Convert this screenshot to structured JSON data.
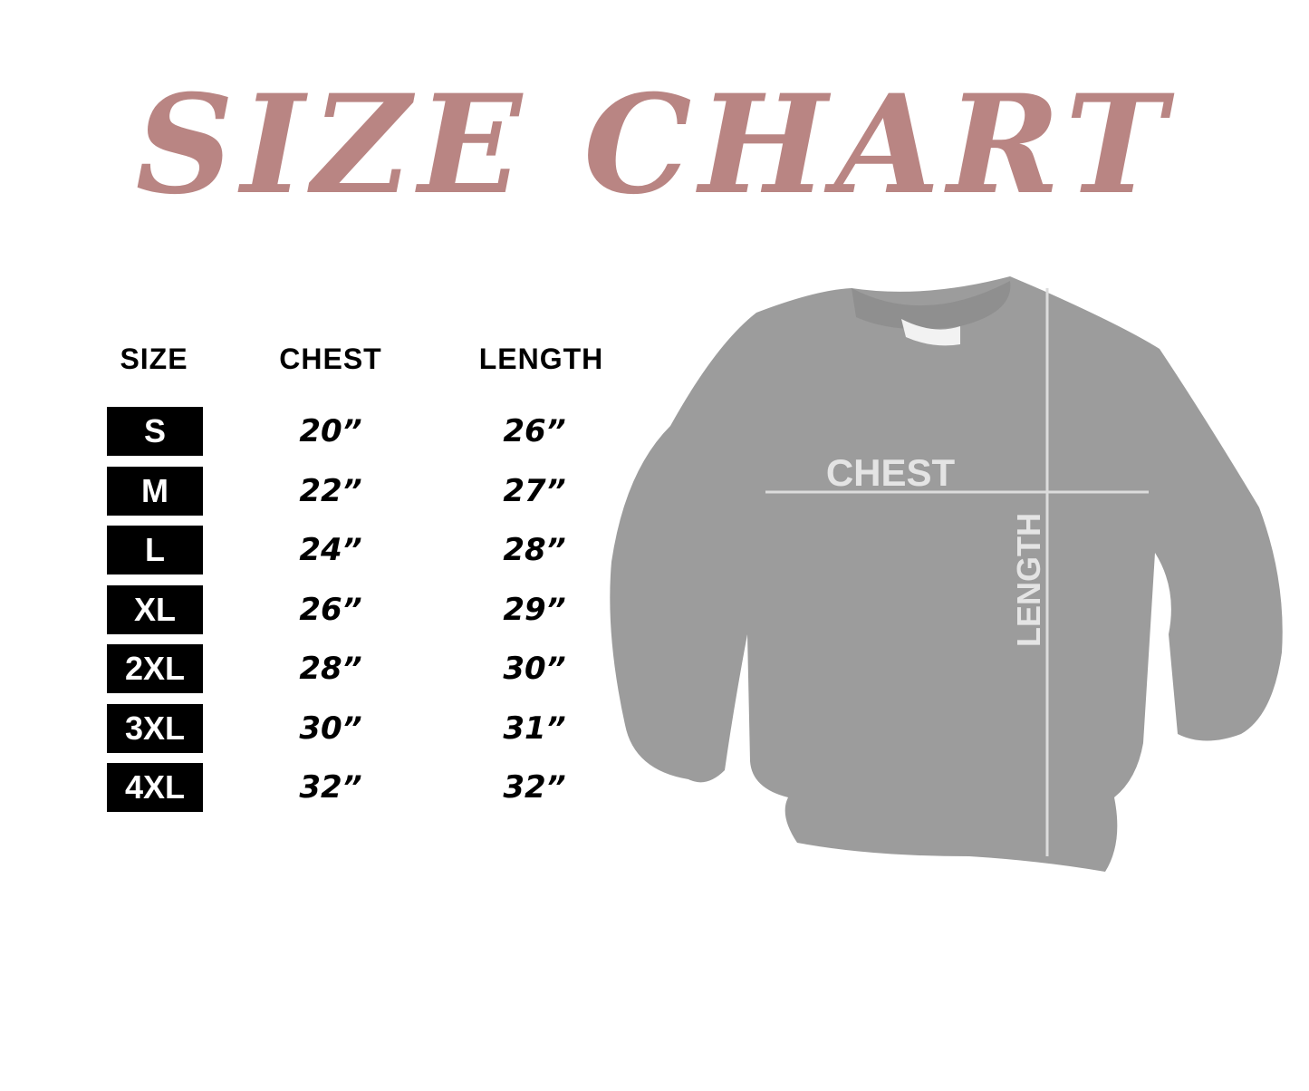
{
  "title": "SIZE CHART",
  "title_color": "#b98583",
  "headers": {
    "size": "SIZE",
    "chest": "CHEST",
    "length": "LENGTH"
  },
  "rows": [
    {
      "size": "S",
      "chest": "20”",
      "length": "26”"
    },
    {
      "size": "M",
      "chest": "22”",
      "length": "27”"
    },
    {
      "size": "L",
      "chest": "24”",
      "length": "28”"
    },
    {
      "size": "XL",
      "chest": "26”",
      "length": "29”"
    },
    {
      "size": "2XL",
      "chest": "28”",
      "length": "30”"
    },
    {
      "size": "3XL",
      "chest": "30”",
      "length": "31”"
    },
    {
      "size": "4XL",
      "chest": "32”",
      "length": "32”"
    }
  ],
  "diagram": {
    "chest_label": "CHEST",
    "length_label": "LENGTH",
    "garment_color": "#9c9c9c"
  }
}
